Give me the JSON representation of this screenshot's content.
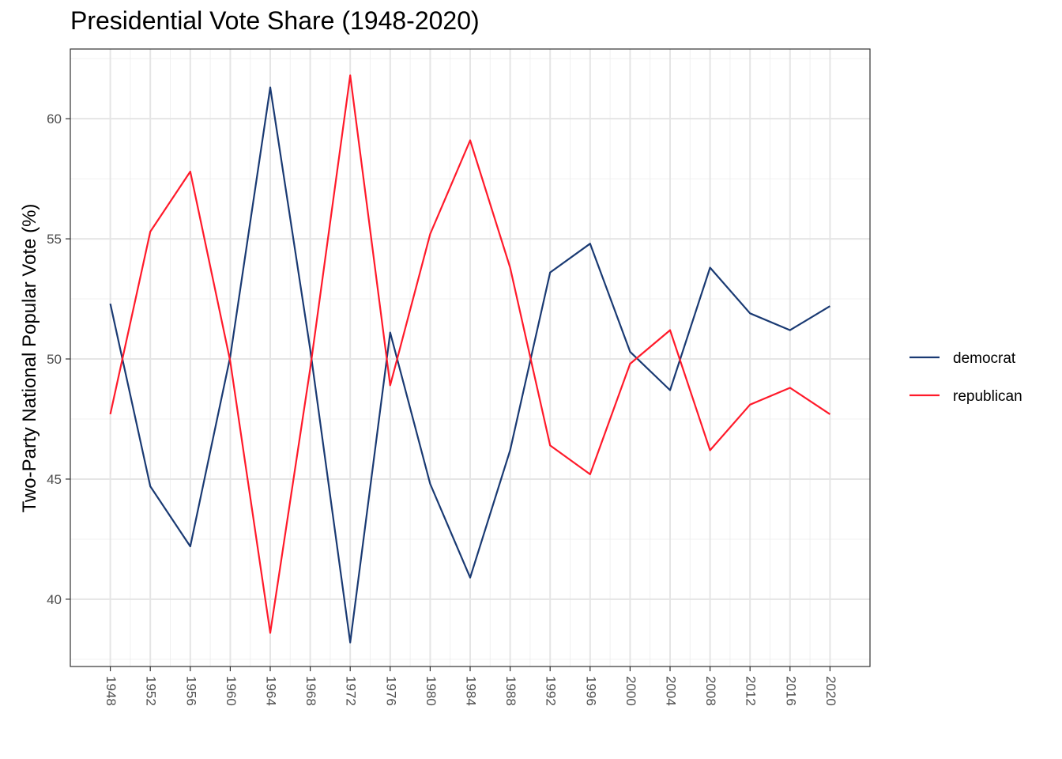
{
  "chart_data": {
    "type": "line",
    "title": "Presidential Vote Share (1948-2020)",
    "xlabel": "",
    "ylabel": "Two-Party National Popular Vote (%)",
    "x": [
      1948,
      1952,
      1956,
      1960,
      1964,
      1968,
      1972,
      1976,
      1980,
      1984,
      1988,
      1992,
      1996,
      2000,
      2004,
      2008,
      2012,
      2016,
      2020
    ],
    "x_tick_labels": [
      "1948",
      "1952",
      "1956",
      "1960",
      "1964",
      "1968",
      "1972",
      "1976",
      "1980",
      "1984",
      "1988",
      "1992",
      "1996",
      "2000",
      "2004",
      "2008",
      "2012",
      "2016",
      "2020"
    ],
    "y_ticks": [
      40,
      45,
      50,
      55,
      60
    ],
    "y_tick_labels": [
      "40",
      "45",
      "50",
      "55",
      "60"
    ],
    "xlim": [
      1944,
      2024
    ],
    "ylim": [
      37.2,
      62.9
    ],
    "grid": true,
    "legend_position": "right",
    "series": [
      {
        "name": "democrat",
        "color": "#1a3a73",
        "values": [
          52.3,
          44.7,
          42.2,
          50.1,
          61.3,
          50.4,
          38.2,
          51.1,
          44.8,
          40.9,
          46.2,
          53.6,
          54.8,
          50.3,
          48.7,
          53.8,
          51.9,
          51.2,
          52.2
        ]
      },
      {
        "name": "republican",
        "color": "#ff1a2a",
        "values": [
          47.7,
          55.3,
          57.8,
          49.9,
          38.6,
          49.6,
          61.8,
          48.9,
          55.2,
          59.1,
          53.8,
          46.4,
          45.2,
          49.8,
          51.2,
          46.2,
          48.1,
          48.8,
          47.7
        ]
      }
    ]
  }
}
